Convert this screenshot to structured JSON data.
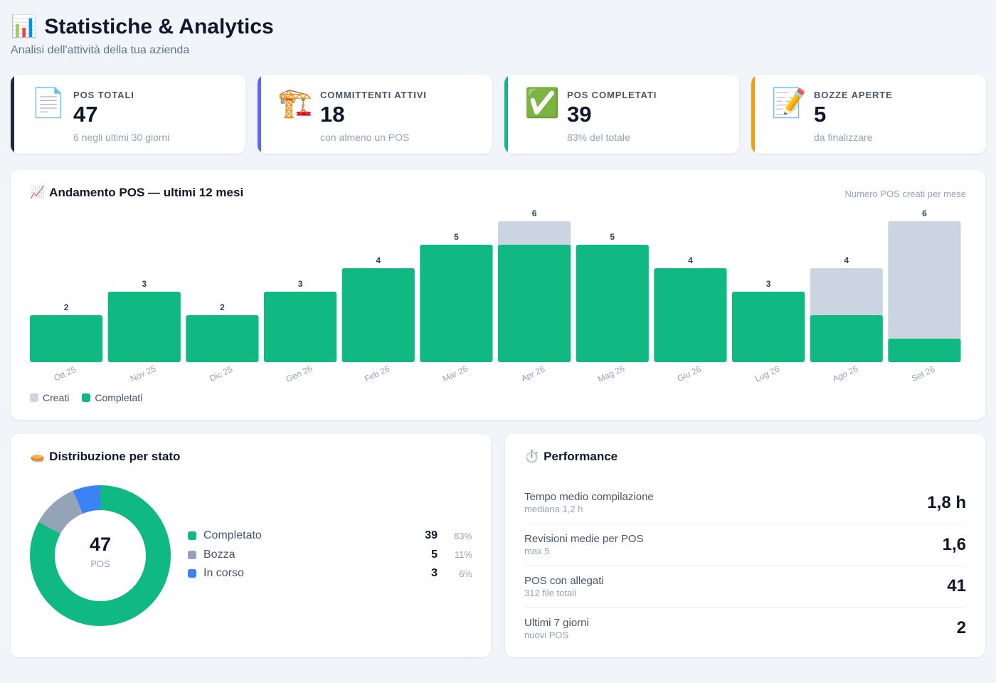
{
  "header": {
    "title": "Statistiche & Analytics",
    "title_icon": "📊",
    "subtitle": "Analisi dell'attività della tua azienda"
  },
  "stats": [
    {
      "icon": "📄",
      "icon_name": "document-icon",
      "label": "POS TOTALI",
      "value": "47",
      "note": "6 negli ultimi 30 giorni",
      "accent": "#1e293b"
    },
    {
      "icon": "🏗️",
      "icon_name": "crane-icon",
      "label": "COMMITTENTI ATTIVI",
      "value": "18",
      "note": "con almeno un POS",
      "accent": "#6366f1"
    },
    {
      "icon": "✅",
      "icon_name": "check-icon",
      "label": "POS COMPLETATI",
      "value": "39",
      "note": "83% del totale",
      "accent": "#10b981"
    },
    {
      "icon": "📝",
      "icon_name": "memo-icon",
      "label": "BOZZE APERTE",
      "value": "5",
      "note": "da finalizzare",
      "accent": "#f59e0b"
    }
  ],
  "trend": {
    "title": "Andamento POS — ultimi 12 mesi",
    "title_icon": "📈",
    "caption": "Numero POS creati per mese",
    "legend": {
      "created": "Creati",
      "completed": "Completati"
    }
  },
  "chart_data": {
    "type": "bar",
    "categories": [
      "Ott 25",
      "Nov 25",
      "Dic 25",
      "Gen 26",
      "Feb 26",
      "Mar 26",
      "Apr 26",
      "Mag 26",
      "Giu 26",
      "Lug 26",
      "Ago 26",
      "Set 26"
    ],
    "series": [
      {
        "name": "Creati",
        "values": [
          2,
          3,
          2,
          3,
          4,
          5,
          6,
          5,
          4,
          3,
          4,
          6
        ],
        "color": "#cbd5e1"
      },
      {
        "name": "Completati",
        "values": [
          2,
          3,
          2,
          3,
          4,
          5,
          5,
          5,
          4,
          3,
          2,
          1
        ],
        "color": "#10b981"
      }
    ],
    "ylim": [
      0,
      6
    ],
    "data_labels": "Creati",
    "grid": false,
    "legend_position": "bottom-left"
  },
  "distribution": {
    "title": "Distribuzione per stato",
    "title_icon": "🥧",
    "center_value": "47",
    "center_label": "POS",
    "items": [
      {
        "name": "Completato",
        "count": 39,
        "count_text": "39",
        "pct": "83%",
        "color": "#10b981"
      },
      {
        "name": "Bozza",
        "count": 5,
        "count_text": "5",
        "pct": "11%",
        "color": "#94a3b8"
      },
      {
        "name": "In corso",
        "count": 3,
        "count_text": "3",
        "pct": "6%",
        "color": "#3b82f6"
      }
    ]
  },
  "performance": {
    "title": "Performance",
    "title_icon": "⏱️",
    "rows": [
      {
        "name": "Tempo medio compilazione",
        "sub": "mediana 1,2 h",
        "value": "1,8 h"
      },
      {
        "name": "Revisioni medie per POS",
        "sub": "max 5",
        "value": "1,6"
      },
      {
        "name": "POS con allegati",
        "sub": "312 file totali",
        "value": "41"
      },
      {
        "name": "Ultimi 7 giorni",
        "sub": "nuovi POS",
        "value": "2"
      }
    ]
  }
}
